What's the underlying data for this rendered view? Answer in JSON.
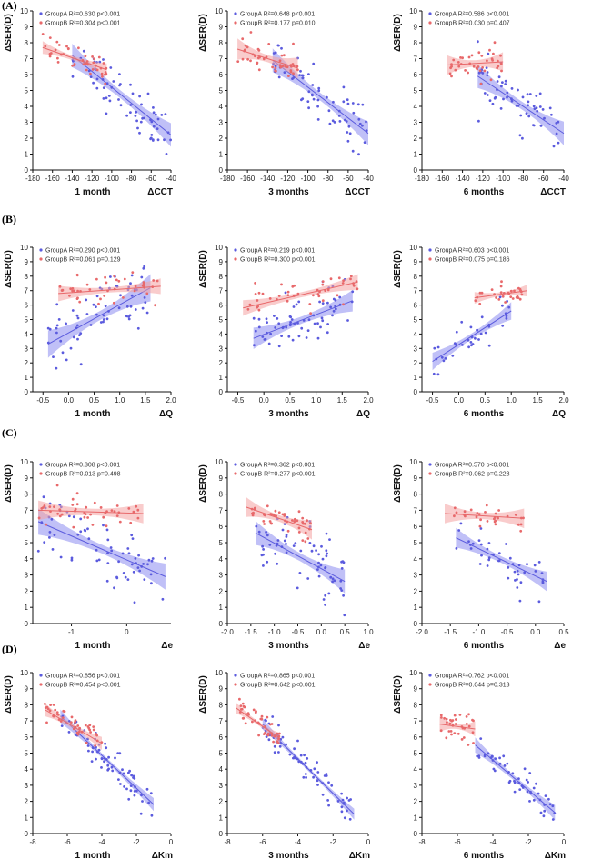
{
  "figure": {
    "row_labels": [
      "(A)",
      "(B)",
      "(C)",
      "(D)"
    ],
    "ylabel": "ΔSER(D)",
    "colors": {
      "groupA": "#5b5bde",
      "groupB": "#e8696b",
      "bandA": "#8c8cf0",
      "bandB": "#f4a3a3"
    }
  },
  "chart_data": [
    {
      "type": "scatter",
      "row": 0,
      "col": 0,
      "title": "",
      "time_label": "1 month",
      "xlabel": "ΔCCT",
      "xlim": [
        -180,
        -40
      ],
      "xticks": [
        -180,
        -160,
        -140,
        -120,
        -100,
        -80,
        -60,
        -40
      ],
      "ylim": [
        0,
        10
      ],
      "yticks": [
        0,
        1,
        2,
        3,
        4,
        5,
        6,
        7,
        8,
        9,
        10
      ],
      "series": [
        {
          "name": "GroupA",
          "legend": "GroupA R²=0.630 p<0.001",
          "fit": [
            [
              -140,
              7.2
            ],
            [
              -40,
              2.2
            ]
          ],
          "band": 0.55,
          "n": 70,
          "spread": 0.8
        },
        {
          "name": "GroupB",
          "legend": "GroupB R²=0.304 p<0.001",
          "fit": [
            [
              -170,
              7.7
            ],
            [
              -105,
              6.3
            ]
          ],
          "band": 0.3,
          "n": 45,
          "spread": 0.4
        }
      ]
    },
    {
      "type": "scatter",
      "row": 0,
      "col": 1,
      "title": "",
      "time_label": "3 months",
      "xlabel": "ΔCCT",
      "xlim": [
        -180,
        -40
      ],
      "xticks": [
        -180,
        -160,
        -140,
        -120,
        -100,
        -80,
        -60,
        -40
      ],
      "ylim": [
        0,
        10
      ],
      "yticks": [
        0,
        1,
        2,
        3,
        4,
        5,
        6,
        7,
        8,
        9,
        10
      ],
      "series": [
        {
          "name": "GroupA",
          "legend": "GroupA R²=0.648 p<0.001",
          "fit": [
            [
              -135,
              6.9
            ],
            [
              -40,
              2.3
            ]
          ],
          "band": 0.55,
          "n": 70,
          "spread": 0.8
        },
        {
          "name": "GroupB",
          "legend": "GroupB R²=0.177 p=0.010",
          "fit": [
            [
              -170,
              7.6
            ],
            [
              -110,
              6.4
            ]
          ],
          "band": 0.5,
          "n": 45,
          "spread": 0.5
        }
      ]
    },
    {
      "type": "scatter",
      "row": 0,
      "col": 2,
      "title": "",
      "time_label": "6 months",
      "xlabel": "ΔCCT",
      "xlim": [
        -180,
        -40
      ],
      "xticks": [
        -180,
        -160,
        -140,
        -120,
        -100,
        -80,
        -60,
        -40
      ],
      "ylim": [
        0,
        10
      ],
      "yticks": [
        0,
        1,
        2,
        3,
        4,
        5,
        6,
        7,
        8,
        9,
        10
      ],
      "series": [
        {
          "name": "GroupA",
          "legend": "GroupA R²=0.586 p<0.001",
          "fit": [
            [
              -125,
              5.9
            ],
            [
              -40,
              2.3
            ]
          ],
          "band": 0.55,
          "n": 65,
          "spread": 0.8
        },
        {
          "name": "GroupB",
          "legend": "GroupB R²=0.030 p=0.407",
          "fit": [
            [
              -155,
              6.6
            ],
            [
              -100,
              6.8
            ]
          ],
          "band": 0.45,
          "n": 40,
          "spread": 0.45
        }
      ]
    },
    {
      "type": "scatter",
      "row": 1,
      "col": 0,
      "title": "",
      "time_label": "1 month",
      "xlabel": "ΔQ",
      "xlim": [
        -0.7,
        2.0
      ],
      "xticks": [
        -0.5,
        0.0,
        0.5,
        1.0,
        1.5,
        2.0
      ],
      "ylim": [
        0,
        10
      ],
      "yticks": [
        0,
        1,
        2,
        3,
        4,
        5,
        6,
        7,
        8,
        9,
        10
      ],
      "series": [
        {
          "name": "GroupA",
          "legend": "GroupA R²=0.290 p<0.001",
          "fit": [
            [
              -0.4,
              3.3
            ],
            [
              1.6,
              7.2
            ]
          ],
          "band": 0.7,
          "n": 70,
          "spread": 1.1
        },
        {
          "name": "GroupB",
          "legend": "GroupB R²=0.061 p=0.129",
          "fit": [
            [
              -0.2,
              6.8
            ],
            [
              1.8,
              7.3
            ]
          ],
          "band": 0.4,
          "n": 45,
          "spread": 0.5
        }
      ]
    },
    {
      "type": "scatter",
      "row": 1,
      "col": 1,
      "title": "",
      "time_label": "3 months",
      "xlabel": "ΔQ",
      "xlim": [
        -0.7,
        2.0
      ],
      "xticks": [
        -0.5,
        0.0,
        0.5,
        1.0,
        1.5,
        2.0
      ],
      "ylim": [
        0,
        10
      ],
      "yticks": [
        0,
        1,
        2,
        3,
        4,
        5,
        6,
        7,
        8,
        9,
        10
      ],
      "series": [
        {
          "name": "GroupA",
          "legend": "GroupA R²=0.219 p<0.001",
          "fit": [
            [
              -0.2,
              3.7
            ],
            [
              1.7,
              6.3
            ]
          ],
          "band": 0.55,
          "n": 70,
          "spread": 1.1
        },
        {
          "name": "GroupB",
          "legend": "GroupB R²=0.300 p<0.001",
          "fit": [
            [
              -0.4,
              5.8
            ],
            [
              1.8,
              7.6
            ]
          ],
          "band": 0.4,
          "n": 45,
          "spread": 0.5
        }
      ]
    },
    {
      "type": "scatter",
      "row": 1,
      "col": 2,
      "title": "",
      "time_label": "6 months",
      "xlabel": "ΔQ",
      "xlim": [
        -0.7,
        2.0
      ],
      "xticks": [
        -0.5,
        0.0,
        0.5,
        1.0,
        1.5,
        2.0
      ],
      "ylim": [
        0,
        10
      ],
      "yticks": [
        0,
        1,
        2,
        3,
        4,
        5,
        6,
        7,
        8,
        9,
        10
      ],
      "series": [
        {
          "name": "GroupA",
          "legend": "GroupA R²=0.603 p<0.001",
          "fit": [
            [
              -0.5,
              2.1
            ],
            [
              1.0,
              5.6
            ]
          ],
          "band": 0.45,
          "n": 40,
          "spread": 0.6
        },
        {
          "name": "GroupB",
          "legend": "GroupB R²=0.075 p=0.186",
          "fit": [
            [
              0.3,
              6.5
            ],
            [
              1.3,
              7.0
            ]
          ],
          "band": 0.3,
          "n": 30,
          "spread": 0.35
        }
      ]
    },
    {
      "type": "scatter",
      "row": 2,
      "col": 0,
      "title": "",
      "time_label": "1 month",
      "xlabel": "Δe",
      "xlim": [
        -1.7,
        0.8
      ],
      "xticks": [
        -1,
        0
      ],
      "ylim": [
        0,
        10
      ],
      "yticks": [
        0,
        1,
        2,
        3,
        4,
        5,
        6,
        7,
        8,
        9,
        10
      ],
      "series": [
        {
          "name": "GroupA",
          "legend": "GroupA R²=0.308 p<0.001",
          "fit": [
            [
              -1.6,
              6.3
            ],
            [
              0.7,
              2.9
            ]
          ],
          "band": 0.6,
          "n": 70,
          "spread": 1.0
        },
        {
          "name": "GroupB",
          "legend": "GroupB R²=0.013 p=0.498",
          "fit": [
            [
              -1.6,
              7.0
            ],
            [
              0.3,
              6.8
            ]
          ],
          "band": 0.45,
          "n": 45,
          "spread": 0.5
        }
      ]
    },
    {
      "type": "scatter",
      "row": 2,
      "col": 1,
      "title": "",
      "time_label": "3 months",
      "xlabel": "Δe",
      "xlim": [
        -2.0,
        1.0
      ],
      "xticks": [
        -2.0,
        -1.5,
        -1.0,
        -0.5,
        0.0,
        0.5,
        1.0
      ],
      "ylim": [
        0,
        10
      ],
      "yticks": [
        0,
        1,
        2,
        3,
        4,
        5,
        6,
        7,
        8,
        9,
        10
      ],
      "series": [
        {
          "name": "GroupA",
          "legend": "GroupA R²=0.362 p<0.001",
          "fit": [
            [
              -1.4,
              5.6
            ],
            [
              0.5,
              2.6
            ]
          ],
          "band": 0.55,
          "n": 70,
          "spread": 1.0
        },
        {
          "name": "GroupB",
          "legend": "GroupB R²=0.277 p<0.001",
          "fit": [
            [
              -1.6,
              7.2
            ],
            [
              -0.2,
              5.8
            ]
          ],
          "band": 0.45,
          "n": 45,
          "spread": 0.5
        }
      ]
    },
    {
      "type": "scatter",
      "row": 2,
      "col": 2,
      "title": "",
      "time_label": "6 months",
      "xlabel": "Δe",
      "xlim": [
        -2.0,
        0.5
      ],
      "xticks": [
        -2.0,
        -1.5,
        -1.0,
        -0.5,
        0.0,
        0.5
      ],
      "ylim": [
        0,
        10
      ],
      "yticks": [
        0,
        1,
        2,
        3,
        4,
        5,
        6,
        7,
        8,
        9,
        10
      ],
      "series": [
        {
          "name": "GroupA",
          "legend": "GroupA R²=0.570 p<0.001",
          "fit": [
            [
              -1.4,
              5.3
            ],
            [
              0.2,
              2.6
            ]
          ],
          "band": 0.45,
          "n": 45,
          "spread": 0.7
        },
        {
          "name": "GroupB",
          "legend": "GroupB R²=0.062 p=0.228",
          "fit": [
            [
              -1.6,
              6.8
            ],
            [
              -0.2,
              6.5
            ]
          ],
          "band": 0.45,
          "n": 30,
          "spread": 0.4
        }
      ]
    },
    {
      "type": "scatter",
      "row": 3,
      "col": 0,
      "title": "",
      "time_label": "1 month",
      "xlabel": "ΔKm",
      "xlim": [
        -8,
        0
      ],
      "xticks": [
        -8,
        -6,
        -4,
        -2,
        0
      ],
      "ylim": [
        0,
        10
      ],
      "yticks": [
        0,
        1,
        2,
        3,
        4,
        5,
        6,
        7,
        8,
        9,
        10
      ],
      "series": [
        {
          "name": "GroupA",
          "legend": "GroupA R²=0.856 p<0.001",
          "fit": [
            [
              -6.4,
              7.3
            ],
            [
              -1.0,
              1.8
            ]
          ],
          "band": 0.3,
          "n": 70,
          "spread": 0.5
        },
        {
          "name": "GroupB",
          "legend": "GroupB R²=0.454 p<0.001",
          "fit": [
            [
              -7.3,
              7.7
            ],
            [
              -4.0,
              5.6
            ]
          ],
          "band": 0.3,
          "n": 45,
          "spread": 0.4
        }
      ]
    },
    {
      "type": "scatter",
      "row": 3,
      "col": 1,
      "title": "",
      "time_label": "3 months",
      "xlabel": "ΔKm",
      "xlim": [
        -8,
        0
      ],
      "xticks": [
        -8,
        -6,
        -4,
        -2,
        0
      ],
      "ylim": [
        0,
        10
      ],
      "yticks": [
        0,
        1,
        2,
        3,
        4,
        5,
        6,
        7,
        8,
        9,
        10
      ],
      "series": [
        {
          "name": "GroupA",
          "legend": "GroupA R²=0.865 p<0.001",
          "fit": [
            [
              -6.0,
              6.8
            ],
            [
              -0.8,
              1.2
            ]
          ],
          "band": 0.25,
          "n": 70,
          "spread": 0.5
        },
        {
          "name": "GroupB",
          "legend": "GroupB R²=0.642 p<0.001",
          "fit": [
            [
              -7.5,
              7.8
            ],
            [
              -5.0,
              5.9
            ]
          ],
          "band": 0.25,
          "n": 45,
          "spread": 0.4
        }
      ]
    },
    {
      "type": "scatter",
      "row": 3,
      "col": 2,
      "title": "",
      "time_label": "6 months",
      "xlabel": "ΔKm",
      "xlim": [
        -8,
        0
      ],
      "xticks": [
        -8,
        -6,
        -4,
        -2,
        0
      ],
      "ylim": [
        0,
        10
      ],
      "yticks": [
        0,
        1,
        2,
        3,
        4,
        5,
        6,
        7,
        8,
        9,
        10
      ],
      "series": [
        {
          "name": "GroupA",
          "legend": "GroupA R²=0.762 p<0.001",
          "fit": [
            [
              -5.0,
              5.5
            ],
            [
              -0.5,
              1.3
            ]
          ],
          "band": 0.35,
          "n": 55,
          "spread": 0.5
        },
        {
          "name": "GroupB",
          "legend": "GroupB R²=0.044 p=0.313",
          "fit": [
            [
              -7.0,
              6.8
            ],
            [
              -5.0,
              6.5
            ]
          ],
          "band": 0.35,
          "n": 35,
          "spread": 0.4
        }
      ]
    }
  ]
}
